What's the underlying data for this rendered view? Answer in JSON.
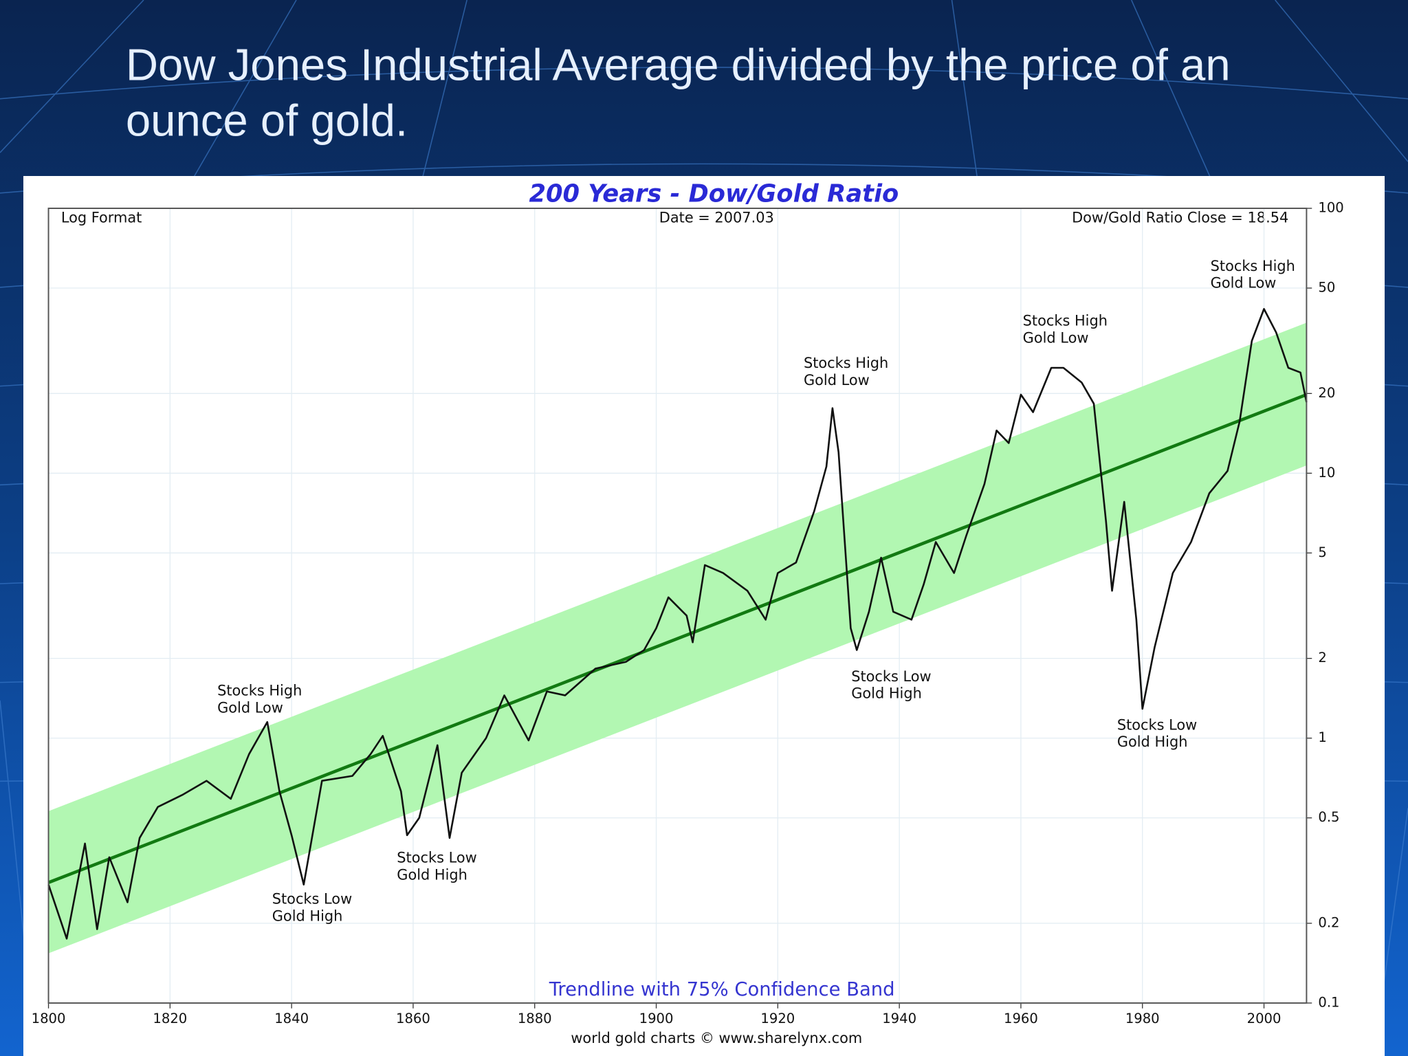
{
  "slide_title": [
    "Dow Jones Industrial Average divided by the price of an",
    "ounce of gold."
  ],
  "chart_data": {
    "type": "line",
    "title": "200 Years - Dow/Gold Ratio",
    "corner_labels": [
      "Log Format",
      "Date = 2007.03",
      "Dow/Gold Ratio Close = 18.54"
    ],
    "band_label": "Trendline with 75% Confidence Band",
    "source": "world gold charts © www.sharelynx.com",
    "log_y": true,
    "grid": true,
    "color": "#111111",
    "trend_color": "#127a12",
    "band_color": "#b2f7b2",
    "x": [
      1800,
      1803,
      1806,
      1808,
      1810,
      1813,
      1815,
      1818,
      1822,
      1826,
      1830,
      1833,
      1836,
      1838,
      1840,
      1842,
      1845,
      1850,
      1853,
      1855,
      1858,
      1859,
      1861,
      1864,
      1866,
      1868,
      1872,
      1875,
      1879,
      1882,
      1885,
      1890,
      1895,
      1898,
      1900,
      1902,
      1905,
      1906,
      1908,
      1911,
      1915,
      1918,
      1920,
      1923,
      1926,
      1928,
      1929,
      1930,
      1932,
      1933,
      1935,
      1937,
      1939,
      1942,
      1944,
      1946,
      1949,
      1951,
      1954,
      1956,
      1958,
      1960,
      1962,
      1965,
      1967,
      1970,
      1972,
      1974,
      1975,
      1977,
      1979,
      1980,
      1982,
      1985,
      1988,
      1991,
      1994,
      1996,
      1998,
      2000,
      2002,
      2004,
      2006,
      2007
    ],
    "values": [
      0.28,
      0.175,
      0.4,
      0.19,
      0.355,
      0.24,
      0.42,
      0.55,
      0.61,
      0.69,
      0.59,
      0.87,
      1.15,
      0.63,
      0.43,
      0.28,
      0.69,
      0.72,
      0.87,
      1.02,
      0.63,
      0.43,
      0.5,
      0.94,
      0.42,
      0.74,
      1.0,
      1.45,
      0.98,
      1.5,
      1.45,
      1.83,
      1.94,
      2.15,
      2.6,
      3.4,
      2.9,
      2.3,
      4.5,
      4.2,
      3.6,
      2.8,
      4.2,
      4.6,
      7.2,
      10.6,
      17.6,
      12,
      2.6,
      2.15,
      3.0,
      4.8,
      3.0,
      2.8,
      3.8,
      5.5,
      4.2,
      5.8,
      9.1,
      14.5,
      13,
      19.8,
      17,
      25,
      25,
      22,
      18.3,
      6.6,
      3.6,
      7.8,
      2.8,
      1.29,
      2.2,
      4.2,
      5.5,
      8.4,
      10.2,
      15.7,
      31.6,
      41.7,
      34,
      25,
      24,
      18.54
    ],
    "trendline": {
      "x": [
        1800,
        2007
      ],
      "values": [
        0.285,
        19.8
      ]
    },
    "band": {
      "x": [
        1800,
        2007
      ],
      "upper": [
        0.53,
        37
      ],
      "lower": [
        0.154,
        10.7
      ]
    },
    "annotations": [
      [
        "Stocks High",
        "Gold Low"
      ],
      [
        "Stocks Low",
        "Gold High"
      ],
      [
        "Stocks Low",
        "Gold High"
      ],
      [
        "Stocks High",
        "Gold Low"
      ],
      [
        "Stocks Low",
        "Gold High"
      ],
      [
        "Stocks High",
        "Gold Low"
      ],
      [
        "Stocks Low",
        "Gold High"
      ],
      [
        "Stocks High",
        "Gold Low"
      ]
    ],
    "xlim": [
      1800,
      2007
    ],
    "xticks": [
      1800,
      1820,
      1840,
      1860,
      1880,
      1900,
      1920,
      1940,
      1960,
      1980,
      2000
    ],
    "ylim": [
      0.1,
      100
    ],
    "yticks": [
      0.1,
      0.2,
      0.5,
      1,
      2,
      5,
      10,
      20,
      50,
      100
    ]
  }
}
